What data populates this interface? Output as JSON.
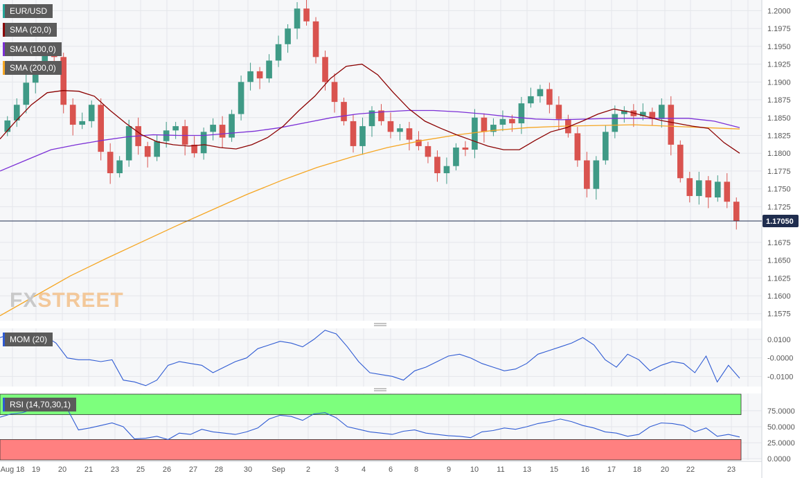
{
  "chart_data": [
    {
      "type": "candlestick",
      "title": "EUR/USD",
      "legend": [
        {
          "label": "EUR/USD",
          "color": "#26a69a"
        },
        {
          "label": "SMA (20,0)",
          "color": "#8b0000"
        },
        {
          "label": "SMA (100,0)",
          "color": "#7b2fd6"
        },
        {
          "label": "SMA (200,0)",
          "color": "#f5a623"
        }
      ],
      "ylim": [
        1.1565,
        1.2015
      ],
      "yticks": [
        "1.2000",
        "1.1975",
        "1.1950",
        "1.1925",
        "1.1900",
        "1.1875",
        "1.1850",
        "1.1825",
        "1.1800",
        "1.1775",
        "1.1750",
        "1.1725",
        "1.1675",
        "1.1650",
        "1.1625",
        "1.1600",
        "1.1575"
      ],
      "last_price": 1.1705,
      "last_price_label": "1.17050",
      "watermark": "FXSTREET",
      "x_dates": [
        "Aug 18",
        "19",
        "20",
        "21",
        "23",
        "25",
        "26",
        "27",
        "28",
        "30",
        "Sep",
        "2",
        "3",
        "4",
        "6",
        "8",
        "9",
        "10",
        "11",
        "13",
        "15",
        "16",
        "17",
        "18",
        "20",
        "22",
        "23"
      ],
      "bull_color": "#3f9a86",
      "bear_color": "#d9534f",
      "candle_closes_sampled": [
        1.1846,
        1.1868,
        1.1899,
        1.1923,
        1.194,
        1.1935,
        1.1868,
        1.184,
        1.1845,
        1.1868,
        1.1802,
        1.1772,
        1.179,
        1.1838,
        1.181,
        1.1795,
        1.1817,
        1.1832,
        1.1838,
        1.1812,
        1.18,
        1.183,
        1.184,
        1.1822,
        1.1855,
        1.19,
        1.1915,
        1.1905,
        1.193,
        1.1953,
        1.1975,
        1.2003,
        1.1985,
        1.1935,
        1.19,
        1.1872,
        1.1845,
        1.181,
        1.1838,
        1.186,
        1.1845,
        1.183,
        1.1835,
        1.1819,
        1.181,
        1.1795,
        1.1772,
        1.1782,
        1.1808,
        1.1805,
        1.185,
        1.183,
        1.184,
        1.1848,
        1.1842,
        1.187,
        1.188,
        1.189,
        1.1868,
        1.1848,
        1.1828,
        1.179,
        1.175,
        1.179,
        1.183,
        1.1855,
        1.186,
        1.1852,
        1.1858,
        1.1848,
        1.1868,
        1.1812,
        1.1765,
        1.174,
        1.1762,
        1.1738,
        1.176,
        1.1732,
        1.1705
      ],
      "sma20": [
        1.182,
        1.1845,
        1.1868,
        1.1885,
        1.1888,
        1.1887,
        1.188,
        1.186,
        1.1842,
        1.1826,
        1.1816,
        1.1812,
        1.181,
        1.1812,
        1.1808,
        1.1806,
        1.1812,
        1.1822,
        1.1838,
        1.186,
        1.188,
        1.1905,
        1.1922,
        1.1925,
        1.191,
        1.1885,
        1.1862,
        1.1845,
        1.1835,
        1.1826,
        1.1818,
        1.181,
        1.1805,
        1.1805,
        1.1818,
        1.183,
        1.1836,
        1.1845,
        1.1855,
        1.1862,
        1.1858,
        1.1852,
        1.1846,
        1.1842,
        1.1838,
        1.1835,
        1.1815,
        1.18
      ],
      "sma100": [
        1.1775,
        1.179,
        1.1805,
        1.1812,
        1.1818,
        1.1823,
        1.1826,
        1.1825,
        1.1825,
        1.1828,
        1.1831,
        1.1836,
        1.1843,
        1.185,
        1.1855,
        1.1858,
        1.186,
        1.186,
        1.1858,
        1.1855,
        1.1851,
        1.1848,
        1.1847,
        1.1848,
        1.1849,
        1.1849,
        1.1849,
        1.1849,
        1.1845,
        1.1836
      ],
      "sma200": [
        1.1572,
        1.16,
        1.1628,
        1.1652,
        1.1675,
        1.1698,
        1.172,
        1.1742,
        1.1762,
        1.178,
        1.1795,
        1.1808,
        1.1818,
        1.1826,
        1.1832,
        1.1836,
        1.1838,
        1.1839,
        1.184,
        1.1838,
        1.1836,
        1.1834
      ]
    },
    {
      "type": "line",
      "title": "MOM (20)",
      "ylim": [
        -0.0155,
        0.016
      ],
      "yticks": [
        "0.0100",
        "-0.0000",
        "-0.0100"
      ],
      "color": "#2f5bd3",
      "values": [
        0.011,
        0.013,
        0.011,
        0.009,
        0.012,
        0.008,
        0.0,
        -0.001,
        -0.001,
        -0.002,
        -0.001,
        -0.012,
        -0.013,
        -0.015,
        -0.012,
        -0.004,
        -0.002,
        -0.003,
        -0.004,
        -0.008,
        -0.005,
        -0.002,
        0.0,
        0.005,
        0.007,
        0.009,
        0.008,
        0.006,
        0.01,
        0.015,
        0.013,
        0.006,
        -0.002,
        -0.008,
        -0.009,
        -0.01,
        -0.012,
        -0.007,
        -0.005,
        -0.002,
        0.001,
        0.002,
        0.0,
        -0.003,
        -0.005,
        -0.007,
        -0.006,
        -0.003,
        0.002,
        0.004,
        0.006,
        0.008,
        0.011,
        0.007,
        -0.001,
        -0.005,
        0.002,
        -0.001,
        -0.007,
        -0.004,
        -0.002,
        -0.003,
        -0.008,
        0.001,
        -0.013,
        -0.004,
        -0.011
      ]
    },
    {
      "type": "line",
      "title": "RSI (14,70,30,1)",
      "ylim": [
        -2,
        102
      ],
      "yticks": [
        "75.0000",
        "50.0000",
        "25.0000",
        "0.0000"
      ],
      "overbought": 70,
      "oversold": 30,
      "overbought_color": "#7dff7d",
      "oversold_color": "#ff8080",
      "color": "#2f5bd3",
      "values": [
        65,
        70,
        72,
        78,
        84,
        82,
        78,
        45,
        48,
        52,
        56,
        50,
        31,
        32,
        35,
        30,
        40,
        38,
        46,
        42,
        40,
        38,
        42,
        48,
        62,
        68,
        66,
        60,
        70,
        72,
        64,
        50,
        46,
        42,
        40,
        38,
        43,
        45,
        40,
        38,
        36,
        35,
        33,
        42,
        44,
        48,
        46,
        50,
        55,
        58,
        62,
        58,
        52,
        48,
        42,
        40,
        35,
        38,
        50,
        56,
        55,
        52,
        42,
        48,
        35,
        38,
        34
      ]
    }
  ]
}
